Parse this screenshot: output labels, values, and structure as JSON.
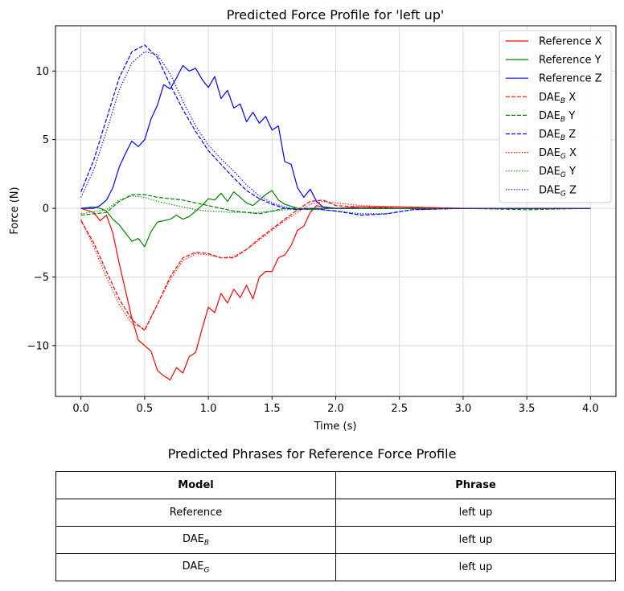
{
  "chart_data": {
    "type": "line",
    "title": "Predicted Force Profile for 'left up'",
    "xlabel": "Time (s)",
    "ylabel": "Force (N)",
    "xlim": [
      -0.2,
      4.2
    ],
    "ylim": [
      -13.7,
      13.3
    ],
    "xticks": [
      0.0,
      0.5,
      1.0,
      1.5,
      2.0,
      2.5,
      3.0,
      3.5,
      4.0
    ],
    "xtick_labels": [
      "0.0",
      "0.5",
      "1.0",
      "1.5",
      "2.0",
      "2.5",
      "3.0",
      "3.5",
      "4.0"
    ],
    "yticks": [
      -10,
      -5,
      0,
      5,
      10
    ],
    "ytick_labels": [
      "−10",
      "−5",
      "0",
      "5",
      "10"
    ],
    "grid": true,
    "legend_position": "top-right",
    "series": [
      {
        "name": "Reference X",
        "color": "#ff0000",
        "style": "solid",
        "x": [
          0,
          0.1,
          0.15,
          0.2,
          0.25,
          0.3,
          0.35,
          0.4,
          0.45,
          0.5,
          0.55,
          0.6,
          0.65,
          0.7,
          0.75,
          0.8,
          0.85,
          0.9,
          0.95,
          1.0,
          1.05,
          1.1,
          1.15,
          1.2,
          1.25,
          1.3,
          1.35,
          1.4,
          1.45,
          1.5,
          1.55,
          1.6,
          1.65,
          1.7,
          1.75,
          1.8,
          1.85,
          1.9,
          2.0,
          2.2,
          2.5,
          3.0,
          3.5,
          4.0
        ],
        "y": [
          0,
          -0.3,
          -0.9,
          -0.5,
          -1.8,
          -4.0,
          -6.0,
          -8.0,
          -9.6,
          -10.0,
          -10.4,
          -11.8,
          -12.2,
          -12.5,
          -11.6,
          -12.0,
          -10.8,
          -10.5,
          -8.8,
          -7.2,
          -7.6,
          -6.2,
          -6.9,
          -5.9,
          -6.5,
          -5.6,
          -6.6,
          -5.0,
          -4.6,
          -4.6,
          -3.6,
          -3.4,
          -2.7,
          -1.6,
          -1.3,
          -0.3,
          0.2,
          0.1,
          0.0,
          0.1,
          0.1,
          0.0,
          0.0,
          0.0
        ]
      },
      {
        "name": "Reference Y",
        "color": "#008000",
        "style": "solid",
        "x": [
          0,
          0.1,
          0.15,
          0.2,
          0.25,
          0.3,
          0.35,
          0.4,
          0.45,
          0.5,
          0.55,
          0.6,
          0.65,
          0.7,
          0.75,
          0.8,
          0.85,
          0.9,
          0.95,
          1.0,
          1.05,
          1.1,
          1.15,
          1.2,
          1.25,
          1.3,
          1.35,
          1.4,
          1.45,
          1.5,
          1.55,
          1.6,
          1.7,
          1.8,
          1.9,
          2.0,
          2.5,
          3.0,
          3.5,
          4.0
        ],
        "y": [
          0,
          0.1,
          0.0,
          -0.2,
          -0.8,
          -1.2,
          -1.8,
          -2.4,
          -2.2,
          -2.8,
          -1.7,
          -1.0,
          -0.9,
          -0.8,
          -0.5,
          -0.8,
          -0.6,
          -0.2,
          0.2,
          0.7,
          0.6,
          1.1,
          0.5,
          1.2,
          0.8,
          0.4,
          0.2,
          0.6,
          1.0,
          1.3,
          0.6,
          0.3,
          0.0,
          -0.1,
          0.0,
          0.0,
          0.0,
          0.0,
          0.0,
          0.0
        ]
      },
      {
        "name": "Reference Z",
        "color": "#0000ff",
        "style": "solid",
        "x": [
          0,
          0.1,
          0.15,
          0.2,
          0.25,
          0.3,
          0.35,
          0.4,
          0.45,
          0.5,
          0.55,
          0.6,
          0.65,
          0.7,
          0.75,
          0.8,
          0.85,
          0.9,
          0.95,
          1.0,
          1.05,
          1.1,
          1.15,
          1.2,
          1.25,
          1.3,
          1.35,
          1.4,
          1.45,
          1.5,
          1.55,
          1.6,
          1.65,
          1.7,
          1.75,
          1.8,
          1.85,
          1.9,
          2.0,
          2.5,
          3.0,
          3.5,
          4.0
        ],
        "y": [
          0,
          0,
          0.2,
          0.6,
          1.5,
          3.0,
          4.0,
          4.9,
          4.5,
          5.0,
          6.5,
          7.5,
          9.0,
          8.7,
          9.5,
          10.4,
          10.0,
          10.2,
          9.4,
          8.8,
          9.6,
          8.0,
          8.6,
          7.3,
          7.6,
          6.3,
          7.0,
          6.2,
          6.7,
          5.7,
          6.0,
          3.4,
          3.2,
          1.5,
          0.8,
          1.4,
          0.5,
          0.1,
          0.0,
          0.0,
          0.0,
          0.0,
          0.0
        ]
      },
      {
        "name": "DAE_B X",
        "color": "#ff0000",
        "style": "dashed",
        "x": [
          0,
          0.1,
          0.2,
          0.3,
          0.4,
          0.5,
          0.6,
          0.7,
          0.8,
          0.9,
          1.0,
          1.1,
          1.2,
          1.3,
          1.4,
          1.5,
          1.6,
          1.7,
          1.8,
          1.9,
          2.0,
          2.2,
          2.5,
          3.0,
          3.5,
          4.0
        ],
        "y": [
          -0.9,
          -2.5,
          -4.6,
          -6.6,
          -8.1,
          -8.9,
          -7.0,
          -5.0,
          -3.6,
          -3.2,
          -3.3,
          -3.6,
          -3.6,
          -3.0,
          -2.2,
          -1.5,
          -0.8,
          -0.1,
          0.5,
          0.6,
          0.2,
          0.1,
          0.0,
          0.0,
          0.0,
          0.0
        ]
      },
      {
        "name": "DAE_B Y",
        "color": "#008000",
        "style": "dashed",
        "x": [
          0,
          0.2,
          0.3,
          0.4,
          0.5,
          0.6,
          0.7,
          0.8,
          0.9,
          1.0,
          1.2,
          1.4,
          1.5,
          1.6,
          1.8,
          2.0,
          2.5,
          3.0,
          3.5,
          4.0
        ],
        "y": [
          -0.5,
          -0.3,
          0.5,
          1.0,
          1.0,
          0.8,
          0.7,
          0.6,
          0.4,
          0.2,
          -0.2,
          -0.4,
          -0.2,
          0.0,
          0.0,
          0.0,
          0.0,
          0.0,
          -0.1,
          0.0
        ]
      },
      {
        "name": "DAE_B Z",
        "color": "#0000ff",
        "style": "dashed",
        "x": [
          0,
          0.1,
          0.2,
          0.3,
          0.4,
          0.5,
          0.6,
          0.7,
          0.8,
          0.9,
          1.0,
          1.1,
          1.2,
          1.3,
          1.4,
          1.5,
          1.6,
          1.7,
          1.8,
          2.0,
          2.2,
          2.4,
          2.6,
          3.0,
          3.5,
          4.0
        ],
        "y": [
          1.2,
          3.5,
          6.5,
          9.5,
          11.4,
          11.9,
          11.0,
          9.0,
          7.2,
          5.6,
          4.2,
          3.2,
          2.2,
          1.3,
          0.7,
          0.3,
          0.0,
          -0.1,
          0.0,
          -0.2,
          -0.5,
          -0.4,
          -0.1,
          0.0,
          0.0,
          0.0
        ]
      },
      {
        "name": "DAE_G X",
        "color": "#ff0000",
        "style": "dotted",
        "x": [
          0,
          0.1,
          0.2,
          0.3,
          0.4,
          0.5,
          0.6,
          0.7,
          0.8,
          0.9,
          1.0,
          1.1,
          1.2,
          1.3,
          1.4,
          1.5,
          1.6,
          1.7,
          1.8,
          1.9,
          2.0,
          2.2,
          2.5,
          3.0,
          3.5,
          4.0
        ],
        "y": [
          -0.8,
          -2.8,
          -5.0,
          -7.0,
          -8.4,
          -8.8,
          -7.0,
          -5.2,
          -3.8,
          -3.3,
          -3.4,
          -3.6,
          -3.5,
          -3.0,
          -2.3,
          -1.6,
          -0.9,
          -0.3,
          0.3,
          0.5,
          0.4,
          0.2,
          0.1,
          0.0,
          0.0,
          0.0
        ]
      },
      {
        "name": "DAE_G Y",
        "color": "#008000",
        "style": "dotted",
        "x": [
          0,
          0.2,
          0.3,
          0.4,
          0.5,
          0.6,
          0.7,
          0.8,
          0.9,
          1.0,
          1.2,
          1.4,
          1.6,
          1.8,
          2.0,
          2.5,
          3.0,
          3.5,
          4.0
        ],
        "y": [
          -0.4,
          -0.1,
          0.6,
          0.9,
          0.8,
          0.5,
          0.3,
          0.1,
          -0.1,
          -0.2,
          -0.3,
          -0.3,
          -0.1,
          0.0,
          0.0,
          0.0,
          0.0,
          0.0,
          0.0
        ]
      },
      {
        "name": "DAE_G Z",
        "color": "#0000ff",
        "style": "dotted",
        "x": [
          0,
          0.1,
          0.2,
          0.3,
          0.4,
          0.5,
          0.6,
          0.7,
          0.8,
          0.9,
          1.0,
          1.1,
          1.2,
          1.3,
          1.4,
          1.5,
          1.6,
          1.7,
          1.8,
          2.0,
          2.2,
          2.4,
          2.6,
          3.0,
          3.5,
          4.0
        ],
        "y": [
          0.8,
          2.8,
          5.6,
          8.6,
          10.6,
          11.4,
          11.2,
          9.8,
          7.8,
          6.0,
          4.6,
          3.6,
          2.7,
          1.7,
          0.9,
          0.4,
          0.1,
          -0.1,
          0.0,
          -0.2,
          -0.4,
          -0.4,
          -0.1,
          0.0,
          0.0,
          0.0
        ]
      }
    ],
    "legend": [
      {
        "main": "Reference X",
        "sub": "",
        "suffix": ""
      },
      {
        "main": "Reference Y",
        "sub": "",
        "suffix": ""
      },
      {
        "main": "Reference Z",
        "sub": "",
        "suffix": ""
      },
      {
        "main": "DAE",
        "sub": "B",
        "suffix": " X"
      },
      {
        "main": "DAE",
        "sub": "B",
        "suffix": " Y"
      },
      {
        "main": "DAE",
        "sub": "B",
        "suffix": " Z"
      },
      {
        "main": "DAE",
        "sub": "G",
        "suffix": " X"
      },
      {
        "main": "DAE",
        "sub": "G",
        "suffix": " Y"
      },
      {
        "main": "DAE",
        "sub": "G",
        "suffix": " Z"
      }
    ]
  },
  "table": {
    "title": "Predicted Phrases for Reference Force Profile",
    "headers": {
      "model": "Model",
      "phrase": "Phrase"
    },
    "rows": [
      {
        "model": "Reference",
        "model_sub": "",
        "phrase": "left up"
      },
      {
        "model": "DAE",
        "model_sub": "B",
        "phrase": "left up"
      },
      {
        "model": "DAE",
        "model_sub": "G",
        "phrase": "left up"
      }
    ]
  }
}
